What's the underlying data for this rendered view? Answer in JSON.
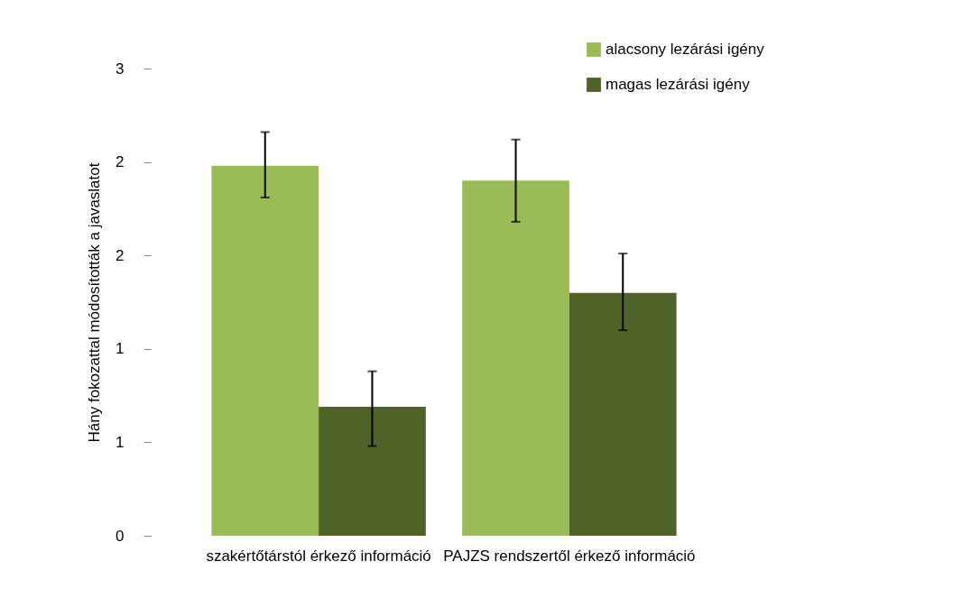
{
  "chart_data": {
    "type": "bar",
    "ylabel": "Hány fokozattal módosították a javaslatot",
    "categories": [
      "szakértőtárstól érkező információ",
      "PAJZS rendszertől érkező információ"
    ],
    "series": [
      {
        "name": "alacsony lezárási igény",
        "color": "#9bbb59",
        "values": [
          1.98,
          1.9
        ],
        "errors": [
          [
            1.81,
            2.16
          ],
          [
            1.68,
            2.12
          ]
        ]
      },
      {
        "name": "magas lezárási igény",
        "color": "#4f6228",
        "values": [
          0.69,
          1.3
        ],
        "errors": [
          [
            0.48,
            0.88
          ],
          [
            1.1,
            1.51
          ]
        ]
      }
    ],
    "ylim": [
      0,
      2.5
    ],
    "yticks": [
      0,
      {
        "value": 0.5,
        "label": "1"
      },
      1,
      {
        "value": 1.5,
        "label": "2"
      },
      2,
      {
        "value": 2.5,
        "label": "3"
      }
    ],
    "legend": "top right",
    "grid": false
  }
}
